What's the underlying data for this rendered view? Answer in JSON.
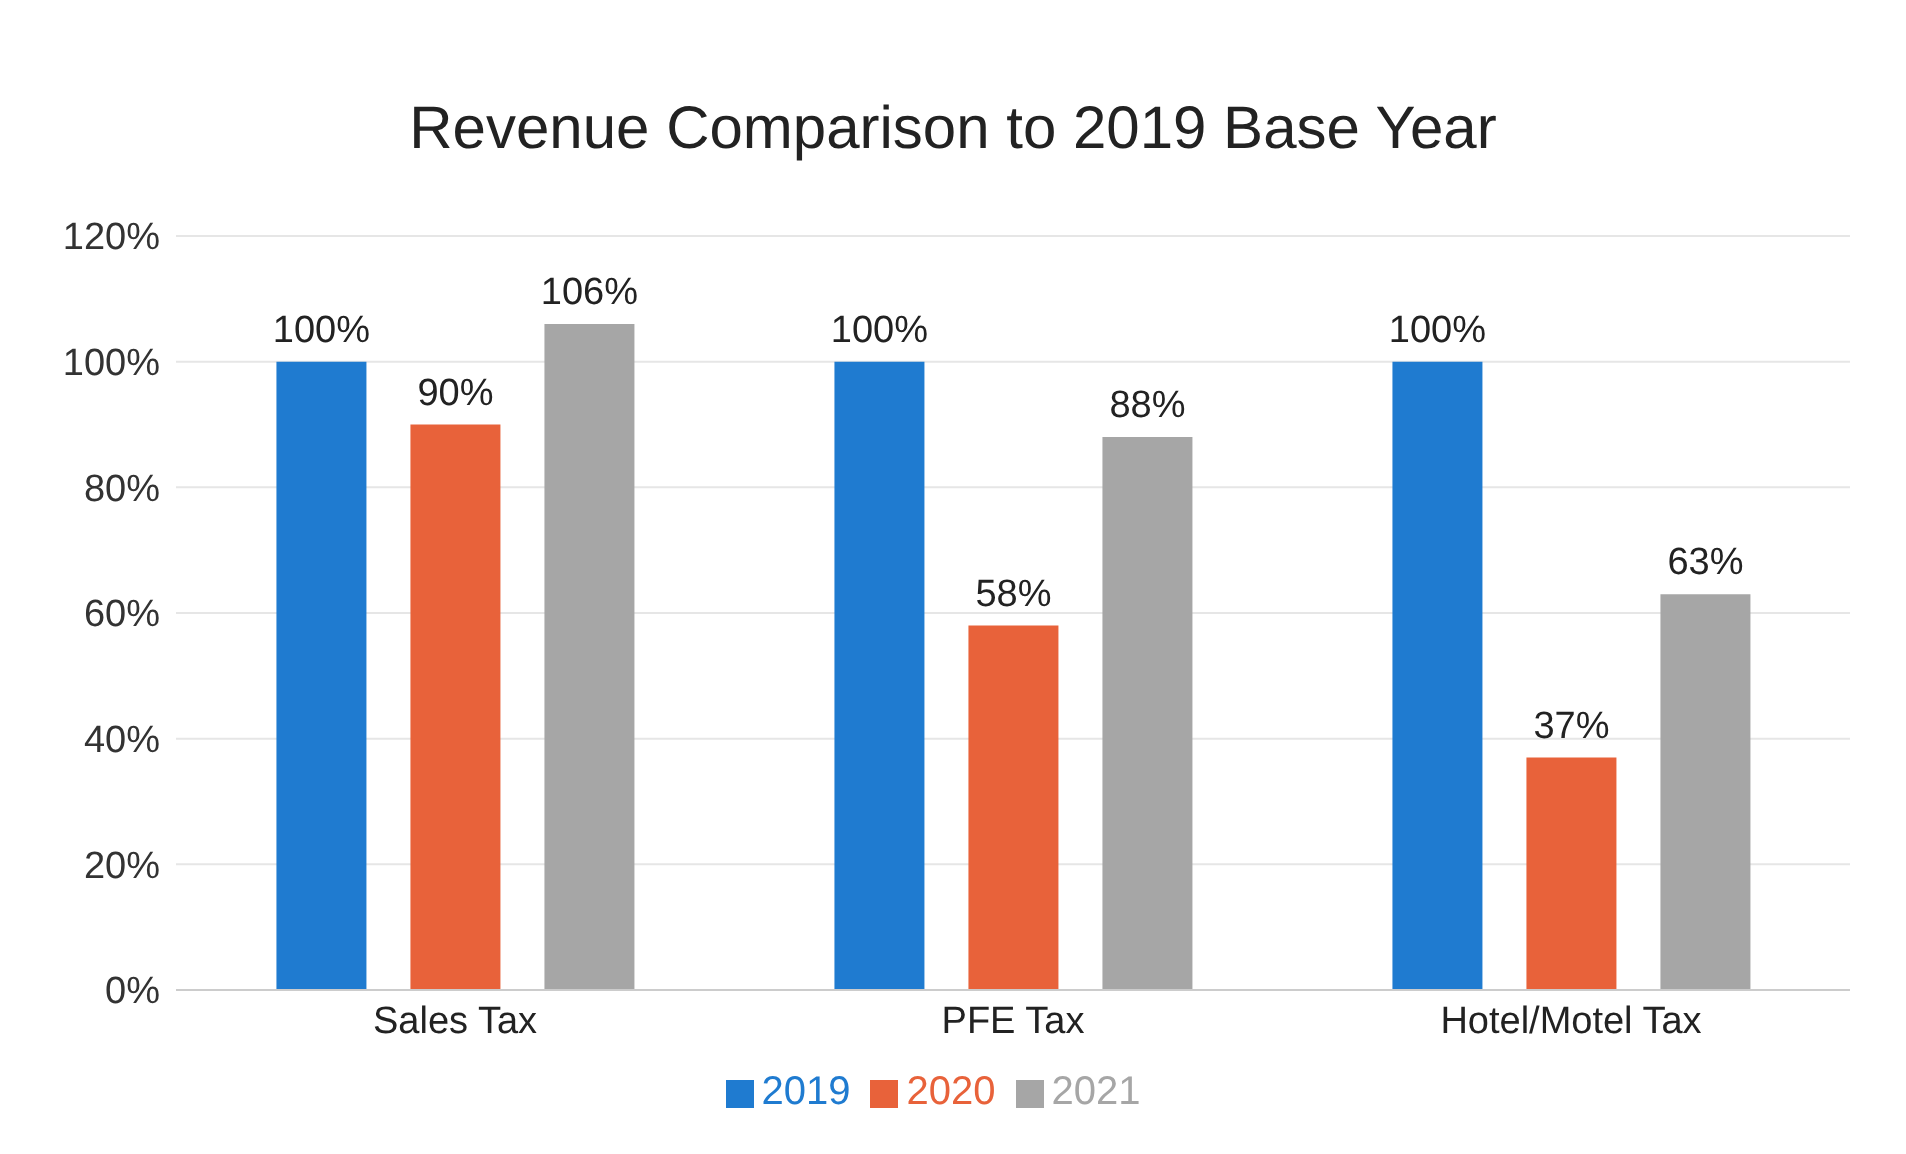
{
  "chart_data": {
    "type": "bar",
    "title": "Revenue Comparison to 2019 Base Year",
    "categories": [
      "Sales Tax",
      "PFE Tax",
      "Hotel/Motel Tax"
    ],
    "series": [
      {
        "name": "2019",
        "color": "#1f7bd0",
        "values": [
          100,
          100,
          100
        ],
        "value_labels": [
          "100%",
          "100%",
          "100%"
        ]
      },
      {
        "name": "2020",
        "color": "#e8623a",
        "values": [
          90,
          58,
          37
        ],
        "value_labels": [
          "90%",
          "58%",
          "37%"
        ]
      },
      {
        "name": "2021",
        "color": "#a6a6a6",
        "values": [
          106,
          88,
          63
        ],
        "value_labels": [
          "106%",
          "88%",
          "63%"
        ]
      }
    ],
    "ylim": [
      0,
      120
    ],
    "yticks": [
      {
        "value": 0,
        "label": "0%"
      },
      {
        "value": 20,
        "label": "20%"
      },
      {
        "value": 40,
        "label": "40%"
      },
      {
        "value": 60,
        "label": "60%"
      },
      {
        "value": 80,
        "label": "80%"
      },
      {
        "value": 100,
        "label": "100%"
      },
      {
        "value": 120,
        "label": "120%"
      }
    ],
    "grid": "y",
    "legend": "bottom"
  }
}
